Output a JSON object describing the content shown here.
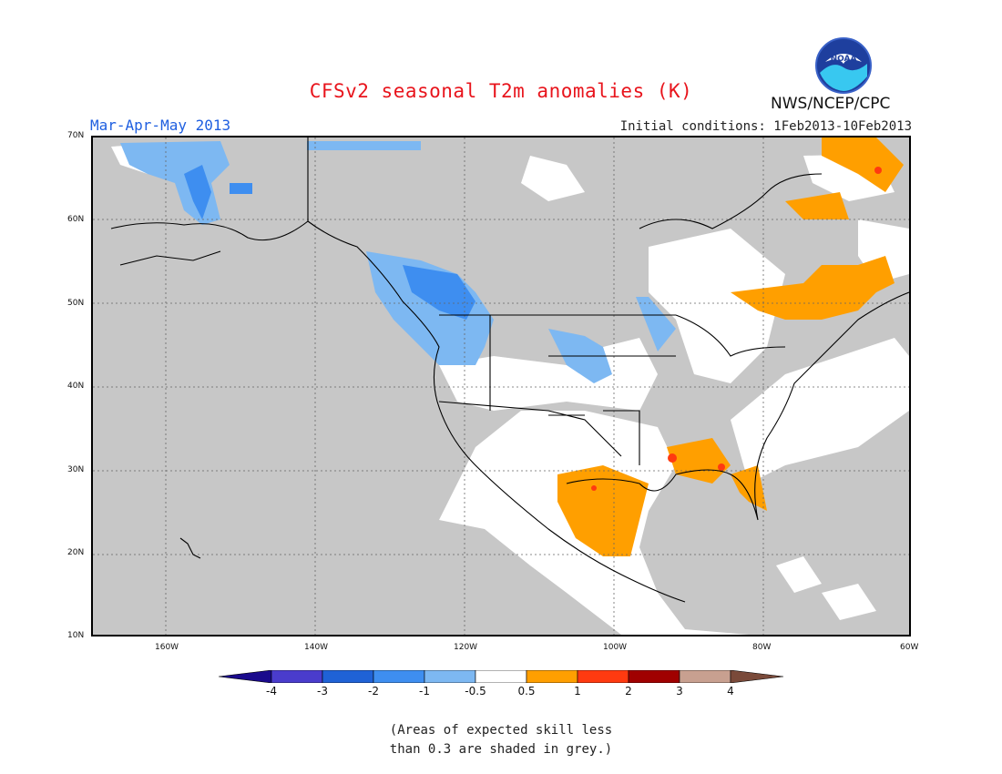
{
  "title": "CFSv2 seasonal T2m anomalies (K)",
  "period": "Mar-Apr-May 2013",
  "initial_conditions": "Initial conditions: 1Feb2013-10Feb2013",
  "agency": "NWS/NCEP/CPC",
  "logo_text": "NOAA",
  "map": {
    "lat_ticks": [
      "70N",
      "60N",
      "50N",
      "40N",
      "30N",
      "20N",
      "10N"
    ],
    "lon_ticks": [
      "160W",
      "140W",
      "120W",
      "100W",
      "80W",
      "60W"
    ],
    "lat_range": [
      10,
      70
    ],
    "lon_range": [
      -170,
      -60
    ],
    "skill_mask_color": "#c7c7c7"
  },
  "colorbar": {
    "ticks": [
      "-4",
      "-3",
      "-2",
      "-1",
      "-0.5",
      "0.5",
      "1",
      "2",
      "3",
      "4"
    ],
    "colors": [
      "#1a0a8c",
      "#4a3ccc",
      "#1f62d6",
      "#3e8ef0",
      "#7db8f2",
      "#ffffff",
      "#ff9f00",
      "#ff3a10",
      "#a00000",
      "#c8a090",
      "#7a4a3a"
    ]
  },
  "note_line1": "(Areas of expected skill less",
  "note_line2": "than 0.3 are shaded in grey.)"
}
